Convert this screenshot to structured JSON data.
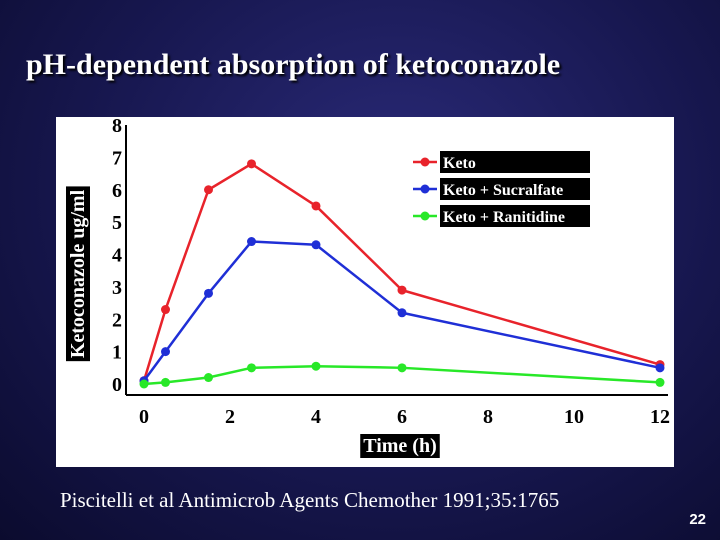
{
  "slide": {
    "title": "pH-dependent absorption of ketoconazole",
    "citation": "Piscitelli et al Antimicrob Agents Chemother 1991;35:1765",
    "slide_number": "22",
    "background_color": "#17174f"
  },
  "chart_data": {
    "type": "line",
    "title": "",
    "xlabel": "Time (h)",
    "ylabel": "Ketoconazole ug/ml",
    "xlim": [
      0,
      12
    ],
    "ylim": [
      0,
      8
    ],
    "x_ticks": [
      "0",
      "2",
      "4",
      "6",
      "8",
      "10",
      "12"
    ],
    "y_ticks": [
      "0",
      "1",
      "2",
      "3",
      "4",
      "5",
      "6",
      "7",
      "8"
    ],
    "legend_position": "top-right",
    "series": [
      {
        "name": "Keto",
        "color": "#e8232b",
        "x": [
          0,
          0.5,
          1.5,
          2.5,
          4,
          6,
          12
        ],
        "values": [
          0.1,
          2.3,
          6.0,
          6.8,
          5.5,
          2.9,
          0.6
        ]
      },
      {
        "name": "Keto + Sucralfate",
        "color": "#1f2fd6",
        "x": [
          0,
          0.5,
          1.5,
          2.5,
          4,
          6,
          12
        ],
        "values": [
          0.1,
          1.0,
          2.8,
          4.4,
          4.3,
          2.2,
          0.5
        ]
      },
      {
        "name": "Keto + Ranitidine",
        "color": "#28e828",
        "x": [
          0,
          0.5,
          1.5,
          2.5,
          4,
          6,
          12
        ],
        "values": [
          0.0,
          0.05,
          0.2,
          0.5,
          0.55,
          0.5,
          0.05
        ]
      }
    ]
  }
}
